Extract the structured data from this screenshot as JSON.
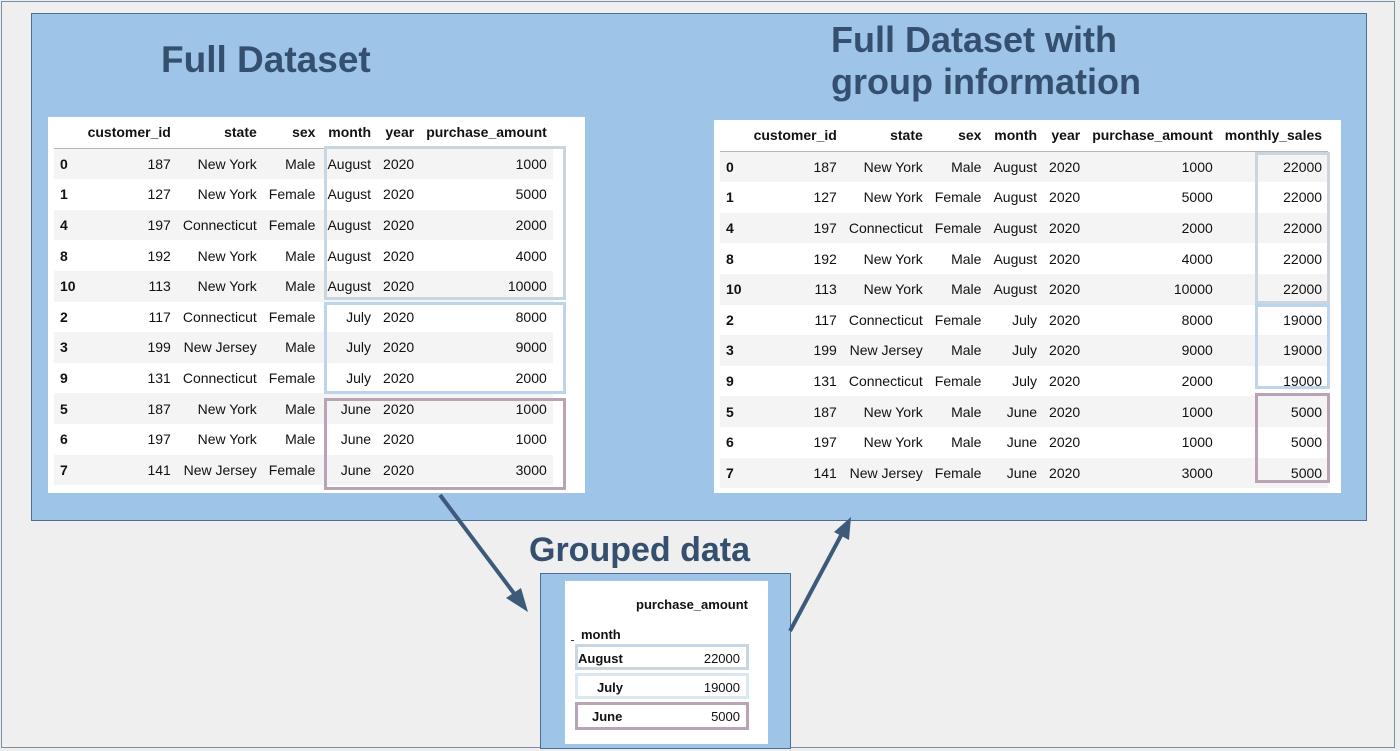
{
  "titles": {
    "full": "Full Dataset",
    "full_group_line1": "Full Dataset with",
    "full_group_line2": "group information",
    "grouped": "Grouped data"
  },
  "full_table": {
    "columns": [
      "customer_id",
      "state",
      "sex",
      "month",
      "year",
      "purchase_amount"
    ],
    "rows": [
      {
        "idx": "0",
        "customer_id": "187",
        "state": "New York",
        "sex": "Male",
        "month": "August",
        "year": "2020",
        "purchase_amount": "1000"
      },
      {
        "idx": "1",
        "customer_id": "127",
        "state": "New York",
        "sex": "Female",
        "month": "August",
        "year": "2020",
        "purchase_amount": "5000"
      },
      {
        "idx": "4",
        "customer_id": "197",
        "state": "Connecticut",
        "sex": "Female",
        "month": "August",
        "year": "2020",
        "purchase_amount": "2000"
      },
      {
        "idx": "8",
        "customer_id": "192",
        "state": "New York",
        "sex": "Male",
        "month": "August",
        "year": "2020",
        "purchase_amount": "4000"
      },
      {
        "idx": "10",
        "customer_id": "113",
        "state": "New York",
        "sex": "Male",
        "month": "August",
        "year": "2020",
        "purchase_amount": "10000"
      },
      {
        "idx": "2",
        "customer_id": "117",
        "state": "Connecticut",
        "sex": "Female",
        "month": "July",
        "year": "2020",
        "purchase_amount": "8000"
      },
      {
        "idx": "3",
        "customer_id": "199",
        "state": "New Jersey",
        "sex": "Male",
        "month": "July",
        "year": "2020",
        "purchase_amount": "9000"
      },
      {
        "idx": "9",
        "customer_id": "131",
        "state": "Connecticut",
        "sex": "Female",
        "month": "July",
        "year": "2020",
        "purchase_amount": "2000"
      },
      {
        "idx": "5",
        "customer_id": "187",
        "state": "New York",
        "sex": "Male",
        "month": "June",
        "year": "2020",
        "purchase_amount": "1000"
      },
      {
        "idx": "6",
        "customer_id": "197",
        "state": "New York",
        "sex": "Male",
        "month": "June",
        "year": "2020",
        "purchase_amount": "1000"
      },
      {
        "idx": "7",
        "customer_id": "141",
        "state": "New Jersey",
        "sex": "Female",
        "month": "June",
        "year": "2020",
        "purchase_amount": "3000"
      }
    ]
  },
  "group_table": {
    "columns": [
      "customer_id",
      "state",
      "sex",
      "month",
      "year",
      "purchase_amount",
      "monthly_sales"
    ],
    "rows": [
      {
        "idx": "0",
        "customer_id": "187",
        "state": "New York",
        "sex": "Male",
        "month": "August",
        "year": "2020",
        "purchase_amount": "1000",
        "monthly_sales": "22000"
      },
      {
        "idx": "1",
        "customer_id": "127",
        "state": "New York",
        "sex": "Female",
        "month": "August",
        "year": "2020",
        "purchase_amount": "5000",
        "monthly_sales": "22000"
      },
      {
        "idx": "4",
        "customer_id": "197",
        "state": "Connecticut",
        "sex": "Female",
        "month": "August",
        "year": "2020",
        "purchase_amount": "2000",
        "monthly_sales": "22000"
      },
      {
        "idx": "8",
        "customer_id": "192",
        "state": "New York",
        "sex": "Male",
        "month": "August",
        "year": "2020",
        "purchase_amount": "4000",
        "monthly_sales": "22000"
      },
      {
        "idx": "10",
        "customer_id": "113",
        "state": "New York",
        "sex": "Male",
        "month": "August",
        "year": "2020",
        "purchase_amount": "10000",
        "monthly_sales": "22000"
      },
      {
        "idx": "2",
        "customer_id": "117",
        "state": "Connecticut",
        "sex": "Female",
        "month": "July",
        "year": "2020",
        "purchase_amount": "8000",
        "monthly_sales": "19000"
      },
      {
        "idx": "3",
        "customer_id": "199",
        "state": "New Jersey",
        "sex": "Male",
        "month": "July",
        "year": "2020",
        "purchase_amount": "9000",
        "monthly_sales": "19000"
      },
      {
        "idx": "9",
        "customer_id": "131",
        "state": "Connecticut",
        "sex": "Female",
        "month": "July",
        "year": "2020",
        "purchase_amount": "2000",
        "monthly_sales": "19000"
      },
      {
        "idx": "5",
        "customer_id": "187",
        "state": "New York",
        "sex": "Male",
        "month": "June",
        "year": "2020",
        "purchase_amount": "1000",
        "monthly_sales": "5000"
      },
      {
        "idx": "6",
        "customer_id": "197",
        "state": "New York",
        "sex": "Male",
        "month": "June",
        "year": "2020",
        "purchase_amount": "1000",
        "monthly_sales": "5000"
      },
      {
        "idx": "7",
        "customer_id": "141",
        "state": "New Jersey",
        "sex": "Female",
        "month": "June",
        "year": "2020",
        "purchase_amount": "3000",
        "monthly_sales": "5000"
      }
    ]
  },
  "grouped": {
    "column": "purchase_amount",
    "index_name": "month",
    "rows": [
      {
        "month": "August",
        "purchase_amount": "22000"
      },
      {
        "month": "July",
        "purchase_amount": "19000"
      },
      {
        "month": "June",
        "purchase_amount": "5000"
      }
    ]
  },
  "colors": {
    "panel": "#9ec4e8",
    "title": "#34506e",
    "arrow": "#3d5a7a",
    "august_box": "#c9d6e0",
    "july_box": "#bcd5ea",
    "june_box": "#b8a4b4"
  }
}
